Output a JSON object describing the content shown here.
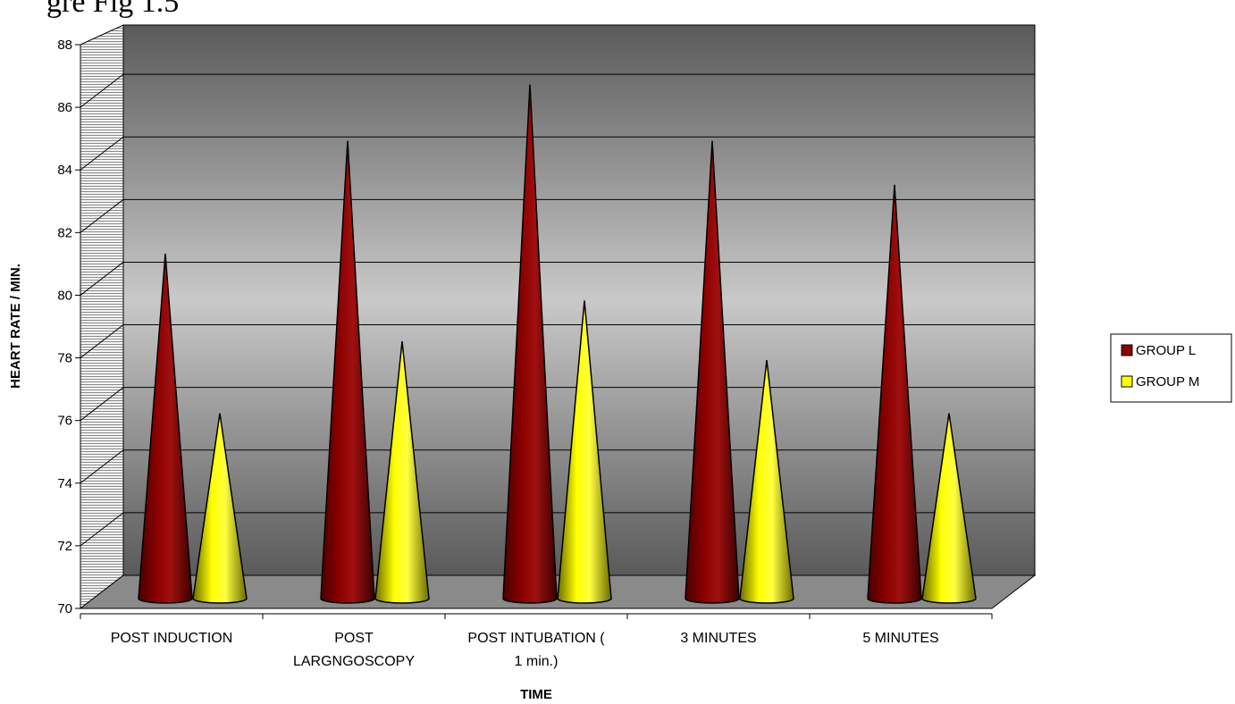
{
  "caption_fragment": "gre Fig 1.5",
  "chart_data": {
    "type": "bar",
    "shape": "cone",
    "title": "",
    "xlabel": "TIME",
    "ylabel": "HEART RATE / MIN.",
    "ylim": [
      70,
      88
    ],
    "yticks": [
      70,
      72,
      74,
      76,
      78,
      80,
      82,
      84,
      86,
      88
    ],
    "grid": true,
    "legend_position": "right",
    "categories": [
      [
        "POST INDUCTION"
      ],
      [
        "POST",
        "LARGNGOSCOPY"
      ],
      [
        "POST INTUBATION (",
        "1 min.)"
      ],
      [
        "3 MINUTES"
      ],
      [
        "5 MINUTES"
      ]
    ],
    "series": [
      {
        "name": "GROUP L",
        "color": "#8b0000",
        "values": [
          81.1,
          84.7,
          86.5,
          84.7,
          83.3
        ]
      },
      {
        "name": "GROUP M",
        "color": "#ffff00",
        "values": [
          76.0,
          78.3,
          79.6,
          77.7,
          76.0
        ]
      }
    ]
  }
}
